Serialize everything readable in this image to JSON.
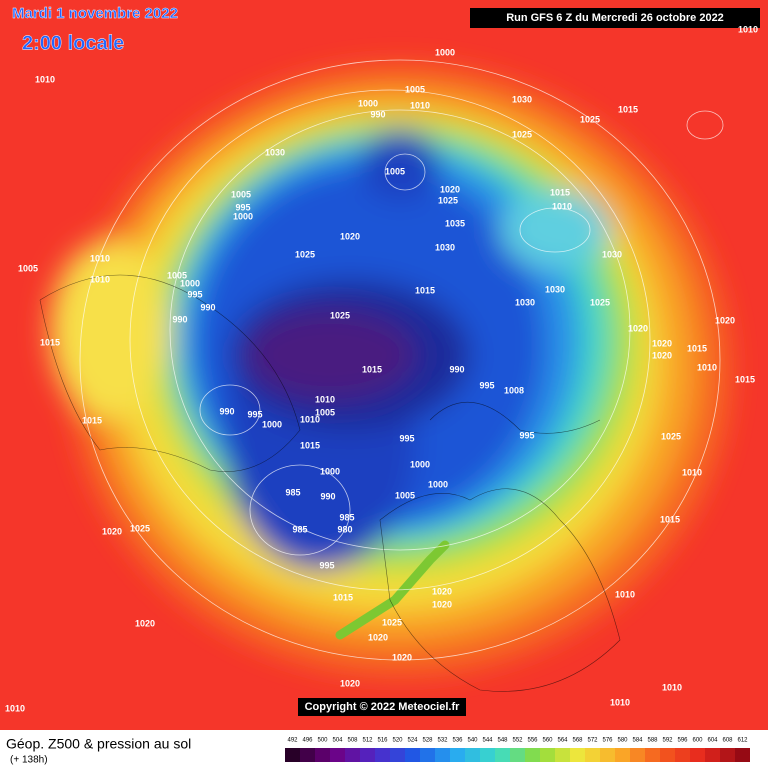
{
  "header": {
    "date": "Mardi 1 novembre 2022",
    "time": "2:00 locale",
    "run": "Run GFS 6 Z du Mercredi 26 octobre 2022"
  },
  "copyright": "Copyright © 2022 Meteociel.fr",
  "footer": {
    "title": "Géop. Z500 & pression au sol",
    "lead": "(+ 138h)",
    "scale": [
      492,
      496,
      500,
      504,
      508,
      512,
      516,
      520,
      524,
      528,
      532,
      536,
      540,
      544,
      548,
      552,
      556,
      560,
      564,
      568,
      572,
      576,
      580,
      584,
      588,
      592,
      596,
      600,
      604,
      608,
      612
    ]
  },
  "isobar_labels": [
    1010,
    1000,
    1005,
    1010,
    1000,
    990,
    1030,
    1015,
    1025,
    1030,
    1025,
    1005,
    1020,
    1025,
    1005,
    995,
    1000,
    1015,
    1010,
    1020,
    1035,
    1030,
    1025,
    1010,
    1005,
    1010,
    1005,
    1030,
    1000,
    995,
    990,
    990,
    1015,
    1030,
    1030,
    1025,
    1025,
    1020,
    1020,
    1015,
    1020,
    1020,
    1015,
    1010,
    1015,
    990,
    995,
    1008,
    1015,
    1010,
    1005,
    990,
    995,
    1000,
    1010,
    995,
    995,
    1025,
    1015,
    1015,
    1000,
    1000,
    1010,
    1000,
    1005,
    985,
    990,
    985,
    980,
    985,
    1020,
    1025,
    1015,
    995,
    1015,
    1020,
    1020,
    1010,
    1020,
    1025,
    1020,
    1020,
    1020,
    1010,
    1010,
    1010,
    1010
  ]
}
